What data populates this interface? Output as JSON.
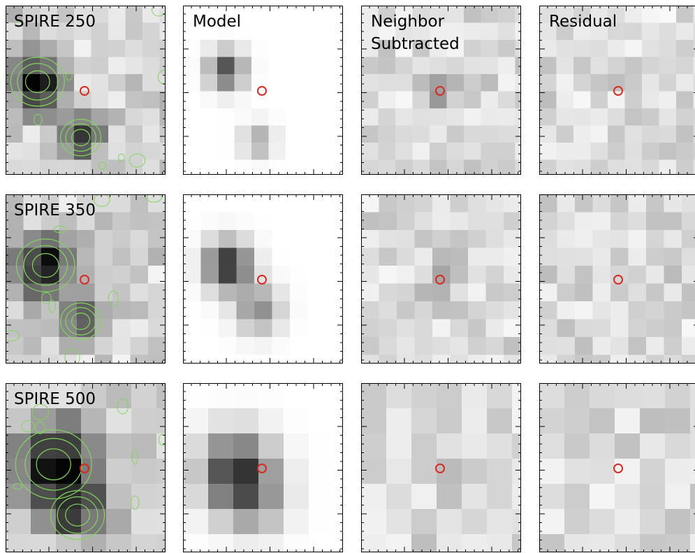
{
  "rows": [
    {
      "label": "SPIRE 250"
    },
    {
      "label": "SPIRE 350"
    },
    {
      "label": "SPIRE 500"
    }
  ],
  "columns": [
    {
      "label": "Model"
    },
    {
      "label": [
        "Neighbor",
        "Subtracted"
      ]
    },
    {
      "label": "Residual"
    }
  ]
}
